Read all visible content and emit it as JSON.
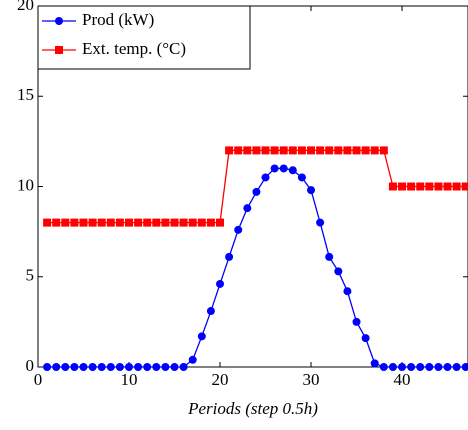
{
  "chart_data": {
    "type": "line",
    "x_label": "Periods (step 0.5h)",
    "x": [
      1,
      2,
      3,
      4,
      5,
      6,
      7,
      8,
      9,
      10,
      11,
      12,
      13,
      14,
      15,
      16,
      17,
      18,
      19,
      20,
      21,
      22,
      23,
      24,
      25,
      26,
      27,
      28,
      29,
      30,
      31,
      32,
      33,
      34,
      35,
      36,
      37,
      38,
      39,
      40,
      41,
      42,
      43,
      44,
      45,
      46,
      47
    ],
    "series": [
      {
        "name": "Prod (kW)",
        "color": "#0000ff",
        "marker": "circle",
        "values": [
          0,
          0,
          0,
          0,
          0,
          0,
          0,
          0,
          0,
          0,
          0,
          0,
          0,
          0,
          0,
          0,
          0.4,
          1.7,
          3.1,
          4.6,
          6.1,
          7.6,
          8.8,
          9.7,
          10.5,
          11.0,
          11.0,
          10.9,
          10.5,
          9.8,
          8.0,
          6.1,
          5.3,
          4.2,
          2.5,
          1.6,
          0.2,
          0,
          0,
          0,
          0,
          0,
          0,
          0,
          0,
          0,
          0
        ]
      },
      {
        "name": "Ext. temp. (°C)",
        "color": "#ff0000",
        "marker": "square",
        "values": [
          8,
          8,
          8,
          8,
          8,
          8,
          8,
          8,
          8,
          8,
          8,
          8,
          8,
          8,
          8,
          8,
          8,
          8,
          8,
          8,
          12,
          12,
          12,
          12,
          12,
          12,
          12,
          12,
          12,
          12,
          12,
          12,
          12,
          12,
          12,
          12,
          12,
          12,
          10,
          10,
          10,
          10,
          10,
          10,
          10,
          10,
          10
        ]
      }
    ],
    "xlim": [
      0,
      47.25
    ],
    "xticks": [
      0,
      10,
      20,
      30,
      40
    ],
    "ylim": [
      0,
      20
    ],
    "yticks": [
      0,
      5,
      10,
      15,
      20
    ],
    "legend": "upper left"
  }
}
